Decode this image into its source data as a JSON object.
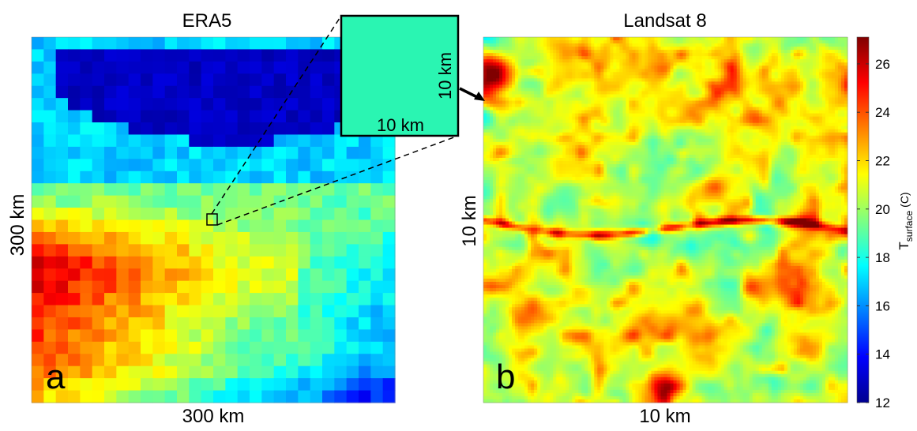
{
  "panel_a": {
    "title": "ERA5",
    "x_label": "300 km",
    "y_label": "300 km",
    "letter": "a",
    "inset": {
      "x_label": "10 km",
      "y_label": "10 km"
    }
  },
  "panel_b": {
    "title": "Landsat 8",
    "x_label": "10 km",
    "y_label": "10 km",
    "letter": "b"
  },
  "colorbar": {
    "label": "T",
    "label_subscript": "surface",
    "label_unit": "(C)",
    "ticks": [
      12,
      14,
      16,
      18,
      20,
      22,
      24,
      26
    ]
  }
}
